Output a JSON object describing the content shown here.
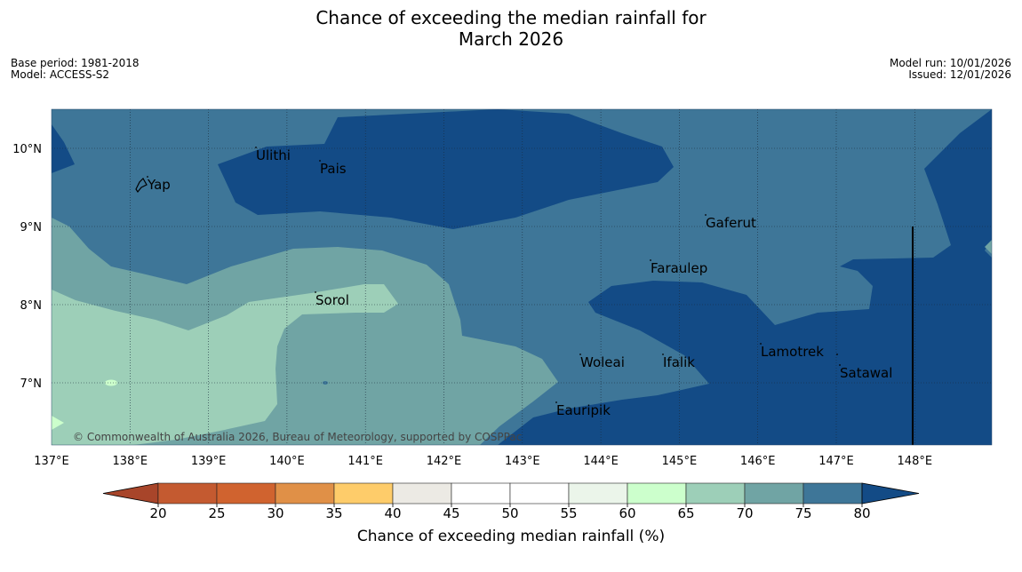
{
  "header": {
    "title_line1": "Chance of exceeding the median rainfall for",
    "title_line2": "March 2026",
    "base_period": "Base period: 1981-2018",
    "model": "Model: ACCESS-S2",
    "model_run": "Model run: 10/01/2026",
    "issued": "Issued: 12/01/2026"
  },
  "map": {
    "lon_range": [
      137,
      149
    ],
    "lat_range": [
      6.2,
      10.5
    ],
    "x_ticks": [
      "137°E",
      "138°E",
      "139°E",
      "140°E",
      "141°E",
      "142°E",
      "143°E",
      "144°E",
      "145°E",
      "146°E",
      "147°E",
      "148°E"
    ],
    "y_ticks": [
      "7°N",
      "8°N",
      "9°N",
      "10°N"
    ],
    "places": [
      {
        "name": "Ulithi"
      },
      {
        "name": "Pais"
      },
      {
        "name": "Yap"
      },
      {
        "name": "Gaferut"
      },
      {
        "name": "Faraulep"
      },
      {
        "name": "Sorol"
      },
      {
        "name": "Woleai"
      },
      {
        "name": "Ifalik"
      },
      {
        "name": "Lamotrek"
      },
      {
        "name": "Satawal"
      },
      {
        "name": "Eauripik"
      }
    ],
    "credit": "© Commonwealth of Australia 2026, Bureau of Meteorology, supported by COSPPac"
  },
  "colorbar": {
    "ticks": [
      "20",
      "25",
      "30",
      "35",
      "40",
      "45",
      "50",
      "55",
      "60",
      "65",
      "70",
      "75",
      "80"
    ],
    "colors": [
      "#a8452a",
      "#c45a30",
      "#d0632f",
      "#e09047",
      "#fecc6a",
      "#eceae4",
      "#ffffff",
      "#ffffff",
      "#ebf5ea",
      "#ccffcc",
      "#9dcfb8",
      "#70a4a4",
      "#3e7698",
      "#134b86"
    ],
    "label": "Chance of exceeding median rainfall (%)"
  }
}
